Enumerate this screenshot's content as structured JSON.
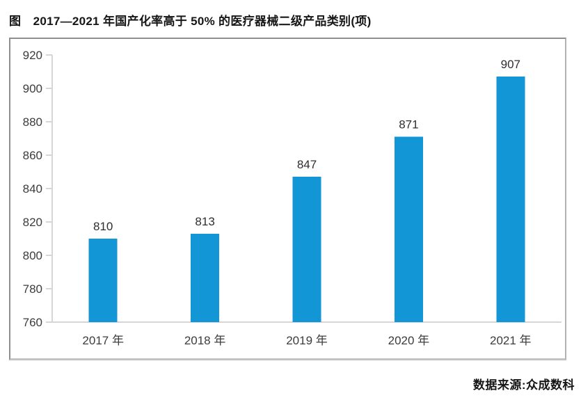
{
  "title": "图　2017—2021 年国产化率高于 50% 的医疗器械二级产品类别(项)",
  "source": "数据来源:众成数科",
  "colors": {
    "bar": "#1296d6",
    "axis": "#d6d6d6",
    "tick_label": "#3c3c3c",
    "value_label": "#2e2e2e",
    "category_label": "#3c3c3c"
  },
  "chart_data": {
    "type": "bar",
    "title": "图 2017—2021 年国产化率高于 50% 的医疗器械二级产品类别(项)",
    "categories": [
      "2017 年",
      "2018 年",
      "2019 年",
      "2020 年",
      "2021 年"
    ],
    "values": [
      810,
      813,
      847,
      871,
      907
    ],
    "value_labels": [
      "810",
      "813",
      "847",
      "871",
      "907"
    ],
    "xlabel": "",
    "ylabel": "",
    "ylim": [
      760,
      920
    ],
    "ytick_step": 20,
    "ytick_labels": [
      "760",
      "780",
      "800",
      "820",
      "840",
      "860",
      "880",
      "900",
      "920"
    ],
    "grid": false,
    "legend": "none",
    "source": "数据来源:众成数科"
  }
}
